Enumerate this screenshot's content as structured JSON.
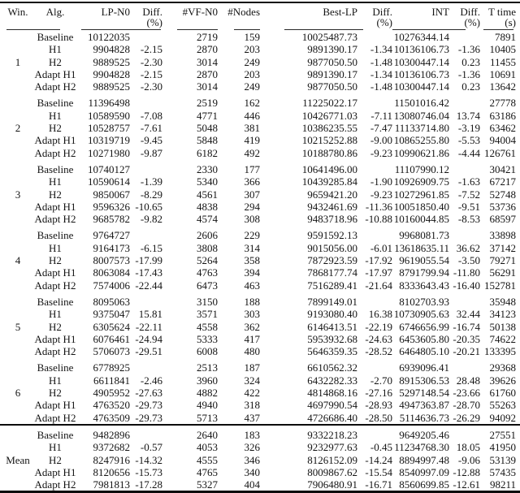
{
  "table": {
    "header": [
      {
        "label": "Win.",
        "sub": ""
      },
      {
        "label": "Alg.",
        "sub": ""
      },
      {
        "label": "LP-N0",
        "sub": ""
      },
      {
        "label": "Diff.",
        "sub": "(%)"
      },
      {
        "label": "#VF-N0",
        "sub": ""
      },
      {
        "label": "#Nodes",
        "sub": ""
      },
      {
        "label": "Best-LP",
        "sub": ""
      },
      {
        "label": "Diff.",
        "sub": "(%)"
      },
      {
        "label": "INT",
        "sub": ""
      },
      {
        "label": "Diff.",
        "sub": "(%)"
      },
      {
        "label": "T time",
        "sub": "(s)"
      }
    ],
    "groups": [
      {
        "win": "1",
        "rows": [
          [
            "Baseline",
            "10122035",
            "",
            "2719",
            "159",
            "10025487.73",
            "",
            "10276344.14",
            "",
            "7891"
          ],
          [
            "H1",
            "9904828",
            "-2.15",
            "2870",
            "203",
            "9891390.17",
            "-1.34",
            "10136106.73",
            "-1.36",
            "10405"
          ],
          [
            "H2",
            "9889525",
            "-2.30",
            "3014",
            "249",
            "9877050.50",
            "-1.48",
            "10300447.14",
            "0.23",
            "11455"
          ],
          [
            "Adapt H1",
            "9904828",
            "-2.15",
            "2870",
            "203",
            "9891390.17",
            "-1.34",
            "10136106.73",
            "-1.36",
            "10691"
          ],
          [
            "Adapt H2",
            "9889525",
            "-2.30",
            "3014",
            "249",
            "9877050.50",
            "-1.48",
            "10300447.14",
            "0.23",
            "13642"
          ]
        ]
      },
      {
        "win": "2",
        "rows": [
          [
            "Baseline",
            "11396498",
            "",
            "2519",
            "162",
            "11225022.17",
            "",
            "11501016.42",
            "",
            "27778"
          ],
          [
            "H1",
            "10589590",
            "-7.08",
            "4771",
            "446",
            "10426771.03",
            "-7.11",
            "13080746.04",
            "13.74",
            "63186"
          ],
          [
            "H2",
            "10528757",
            "-7.61",
            "5048",
            "381",
            "10386235.55",
            "-7.47",
            "11133714.80",
            "-3.19",
            "63462"
          ],
          [
            "Adapt H1",
            "10319719",
            "-9.45",
            "5848",
            "419",
            "10215252.88",
            "-9.00",
            "10865255.80",
            "-5.53",
            "94004"
          ],
          [
            "Adapt H2",
            "10271980",
            "-9.87",
            "6182",
            "492",
            "10188780.86",
            "-9.23",
            "10990621.86",
            "-4.44",
            "126761"
          ]
        ]
      },
      {
        "win": "3",
        "rows": [
          [
            "Baseline",
            "10740127",
            "",
            "2330",
            "177",
            "10641496.00",
            "",
            "11107990.12",
            "",
            "30421"
          ],
          [
            "H1",
            "10590614",
            "-1.39",
            "5340",
            "366",
            "10439285.84",
            "-1.90",
            "10926909.75",
            "-1.63",
            "67217"
          ],
          [
            "H2",
            "9850067",
            "-8.29",
            "4561",
            "307",
            "9659421.20",
            "-9.23",
            "10272961.85",
            "-7.52",
            "52748"
          ],
          [
            "Adapt H1",
            "9596326",
            "-10.65",
            "4838",
            "294",
            "9432461.69",
            "-11.36",
            "10051850.40",
            "-9.51",
            "53736"
          ],
          [
            "Adapt H2",
            "9685782",
            "-9.82",
            "4574",
            "308",
            "9483718.96",
            "-10.88",
            "10160044.85",
            "-8.53",
            "68597"
          ]
        ]
      },
      {
        "win": "4",
        "rows": [
          [
            "Baseline",
            "9764727",
            "",
            "2606",
            "229",
            "9591592.13",
            "",
            "9968081.73",
            "",
            "33898"
          ],
          [
            "H1",
            "9164173",
            "-6.15",
            "3808",
            "314",
            "9015056.00",
            "-6.01",
            "13618635.11",
            "36.62",
            "37142"
          ],
          [
            "H2",
            "8007573",
            "-17.99",
            "5264",
            "358",
            "7872923.59",
            "-17.92",
            "9619055.54",
            "-3.50",
            "79271"
          ],
          [
            "Adapt H1",
            "8063084",
            "-17.43",
            "4763",
            "394",
            "7868177.74",
            "-17.97",
            "8791799.94",
            "-11.80",
            "56291"
          ],
          [
            "Adapt H2",
            "7574006",
            "-22.44",
            "6473",
            "463",
            "7516289.41",
            "-21.64",
            "8333643.43",
            "-16.40",
            "152781"
          ]
        ]
      },
      {
        "win": "5",
        "rows": [
          [
            "Baseline",
            "8095063",
            "",
            "3150",
            "188",
            "7899149.01",
            "",
            "8102703.93",
            "",
            "35948"
          ],
          [
            "H1",
            "9375047",
            "15.81",
            "3571",
            "303",
            "9193080.40",
            "16.38",
            "10730905.63",
            "32.44",
            "34123"
          ],
          [
            "H2",
            "6305624",
            "-22.11",
            "4558",
            "362",
            "6146413.51",
            "-22.19",
            "6746656.99",
            "-16.74",
            "50138"
          ],
          [
            "Adapt H1",
            "6076461",
            "-24.94",
            "5333",
            "417",
            "5953932.68",
            "-24.63",
            "6453605.80",
            "-20.35",
            "74622"
          ],
          [
            "Adapt H2",
            "5706073",
            "-29.51",
            "6008",
            "480",
            "5646359.35",
            "-28.52",
            "6464805.10",
            "-20.21",
            "133395"
          ]
        ]
      },
      {
        "win": "6",
        "rows": [
          [
            "Baseline",
            "6778925",
            "",
            "2513",
            "187",
            "6610562.32",
            "",
            "6939096.41",
            "",
            "29368"
          ],
          [
            "H1",
            "6611841",
            "-2.46",
            "3960",
            "324",
            "6432282.33",
            "-2.70",
            "8915306.53",
            "28.48",
            "39626"
          ],
          [
            "H2",
            "4905952",
            "-27.63",
            "4882",
            "422",
            "4814868.16",
            "-27.16",
            "5297148.54",
            "-23.66",
            "61760"
          ],
          [
            "Adapt H1",
            "4763520",
            "-29.73",
            "4940",
            "318",
            "4697990.54",
            "-28.93",
            "4947363.87",
            "-28.70",
            "55263"
          ],
          [
            "Adapt H2",
            "4763509",
            "-29.73",
            "5713",
            "437",
            "4726686.40",
            "-28.50",
            "5114636.73",
            "-26.29",
            "94092"
          ]
        ]
      },
      {
        "win": "Mean",
        "rows": [
          [
            "Baseline",
            "9482896",
            "",
            "2640",
            "183",
            "9332218.23",
            "",
            "9649205.46",
            "",
            "27551"
          ],
          [
            "H1",
            "9372682",
            "-0.57",
            "4053",
            "326",
            "9232977.63",
            "-0.45",
            "11234768.30",
            "18.05",
            "41950"
          ],
          [
            "H2",
            "8247916",
            "-14.32",
            "4555",
            "346",
            "8126152.09",
            "-14.24",
            "8894997.48",
            "-9.06",
            "53139"
          ],
          [
            "Adapt H1",
            "8120656",
            "-15.73",
            "4765",
            "340",
            "8009867.62",
            "-15.54",
            "8540997.09",
            "-12.88",
            "57435"
          ],
          [
            "Adapt H2",
            "7981813",
            "-17.28",
            "5327",
            "404",
            "7906480.91",
            "-16.71",
            "8560699.85",
            "-12.61",
            "98211"
          ]
        ]
      }
    ]
  }
}
